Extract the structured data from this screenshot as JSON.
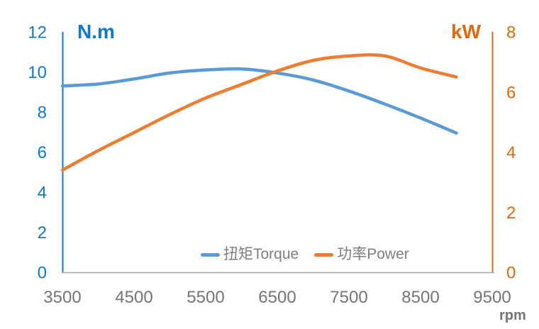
{
  "chart_data": {
    "type": "line",
    "x_axis": {
      "unit": "rpm",
      "min": 3500,
      "max": 9500,
      "ticks": [
        3500,
        4500,
        5500,
        6500,
        7500,
        8500,
        9500
      ]
    },
    "left_axis": {
      "title": "N.m",
      "min": 0,
      "max": 12,
      "ticks": [
        12,
        10,
        8,
        6,
        4,
        2,
        0
      ]
    },
    "right_axis": {
      "title": "kW",
      "min": 0,
      "max": 8,
      "ticks": [
        8,
        6,
        4,
        2,
        0
      ]
    },
    "x": [
      3500,
      4000,
      4500,
      5000,
      5500,
      6000,
      6500,
      7000,
      7500,
      8000,
      8500,
      9000
    ],
    "series": [
      {
        "name": "扭矩Torque",
        "axis": "left",
        "color": "#5B9BD5",
        "values": [
          9.3,
          9.4,
          9.65,
          9.95,
          10.1,
          10.15,
          9.95,
          9.6,
          9.05,
          8.4,
          7.7,
          6.95
        ]
      },
      {
        "name": "功率Power",
        "axis": "right",
        "color": "#ED7D31",
        "values": [
          3.4,
          4.05,
          4.65,
          5.25,
          5.8,
          6.25,
          6.7,
          7.05,
          7.2,
          7.2,
          6.8,
          6.5
        ]
      }
    ],
    "legend_position": "bottom-center",
    "grid": false,
    "colors": {
      "left_axis_text": "#0E79CF",
      "left_axis_line": "#0E79CF",
      "right_axis_text": "#E2690B",
      "right_axis_line": "#E2690B",
      "x_axis_line": "#A6A6A6",
      "x_tick_text": "#757575",
      "legend_text": "#7F7F7F"
    }
  }
}
